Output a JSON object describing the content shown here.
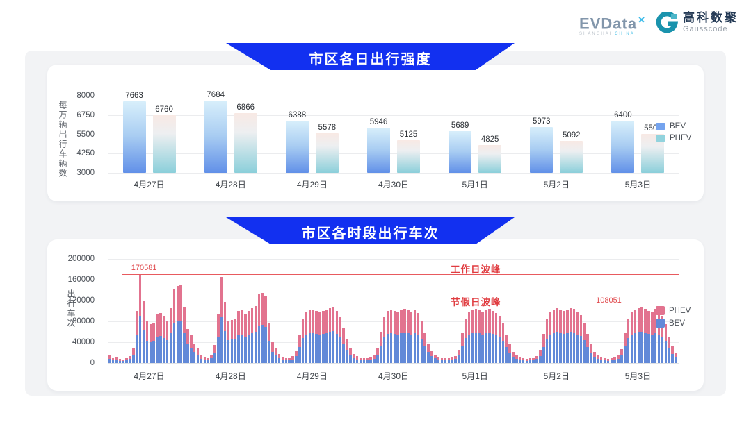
{
  "header": {
    "evdata": {
      "name": "EVData",
      "x_mark": "✕",
      "subtitle_1": "SHANGHAI",
      "subtitle_2": "CHINA"
    },
    "gausscode": {
      "cn": "高科数聚",
      "en": "Gausscode"
    }
  },
  "banners": {
    "daily": "市区各日出行强度",
    "hourly": "市区各时段出行车次"
  },
  "colors": {
    "banner_blue": "#1230f0",
    "bev_solid": "#6289d8",
    "phev_solid": "#e2738f",
    "legend_bev_daily": "#74a3ee",
    "legend_phev_daily": "#92d3dd",
    "annotation_red": "#e04a4d"
  },
  "chart_data": [
    {
      "type": "bar",
      "title": "市区各日出行强度",
      "ylabel": "每万辆出行车辆数",
      "categories": [
        "4月27日",
        "4月28日",
        "4月29日",
        "4月30日",
        "5月1日",
        "5月2日",
        "5月3日"
      ],
      "series": [
        {
          "name": "BEV",
          "values": [
            7663,
            7684,
            6388,
            5946,
            5689,
            5973,
            6400
          ]
        },
        {
          "name": "PHEV",
          "values": [
            6760,
            6866,
            5578,
            5125,
            4825,
            5092,
            5508
          ]
        }
      ],
      "ylim": [
        3000,
        8000
      ],
      "yticks": [
        "8000",
        "6750",
        "5500",
        "4250",
        "3000"
      ],
      "grid": true,
      "legend_position": "right",
      "legend_order": [
        "BEV",
        "PHEV"
      ]
    },
    {
      "type": "bar",
      "stacked": true,
      "title": "市区各时段出行车次",
      "ylabel": "出行车次",
      "categories": [
        "4月27日",
        "4月28日",
        "4月29日",
        "4月30日",
        "5月1日",
        "5月2日",
        "5月3日"
      ],
      "hours_per_day": 24,
      "ylim": [
        0,
        200000
      ],
      "yticks": [
        "200000",
        "160000",
        "120000",
        "80000",
        "40000",
        "0"
      ],
      "grid": true,
      "legend_position": "right",
      "legend_order": [
        "PHEV",
        "BEV"
      ],
      "series": [
        {
          "name": "BEV",
          "values_by_day": [
            [
              8000,
              6000,
              7000,
              4000,
              4000,
              5000,
              8000,
              15000,
              54000,
              91000,
              63000,
              43000,
              40000,
              42000,
              51000,
              52000,
              48000,
              44000,
              57000,
              77000,
              80000,
              81000,
              58000,
              36000
            ],
            [
              30000,
              21000,
              16000,
              8000,
              7000,
              5000,
              9000,
              19000,
              51000,
              88000,
              62000,
              44000,
              45000,
              46000,
              54000,
              55000,
              51000,
              54000,
              57000,
              59000,
              72000,
              73000,
              70000,
              42000
            ],
            [
              22000,
              15000,
              10000,
              7000,
              6000,
              6000,
              7000,
              13000,
              31000,
              48000,
              55000,
              57000,
              58000,
              56000,
              55000,
              56000,
              58000,
              59000,
              61000,
              56000,
              49000,
              38000,
              25000,
              16000
            ],
            [
              10000,
              7000,
              6000,
              5000,
              5000,
              6000,
              8000,
              16000,
              34000,
              49000,
              56000,
              58000,
              56000,
              55000,
              57000,
              58000,
              57000,
              55000,
              58000,
              54000,
              45000,
              32000,
              21000,
              13000
            ],
            [
              9000,
              7000,
              6000,
              5000,
              5000,
              6000,
              8000,
              15000,
              32000,
              48000,
              55000,
              57000,
              58000,
              57000,
              55000,
              57000,
              58000,
              56000,
              54000,
              50000,
              43000,
              31000,
              20000,
              12000
            ],
            [
              8000,
              6000,
              5000,
              4000,
              5000,
              6000,
              8000,
              14000,
              31000,
              47000,
              55000,
              57000,
              59000,
              58000,
              56000,
              58000,
              59000,
              58000,
              55000,
              52000,
              44000,
              31000,
              20000,
              12000
            ],
            [
              8000,
              6000,
              5000,
              4000,
              5000,
              6000,
              8000,
              15000,
              32000,
              48000,
              55000,
              58000,
              59000,
              60000,
              58000,
              56000,
              54000,
              58000,
              55000,
              50000,
              42000,
              28000,
              18000,
              11000
            ]
          ]
        },
        {
          "name": "PHEV",
          "values_by_day": [
            [
              7000,
              4000,
              5000,
              4000,
              3000,
              4000,
              6000,
              13000,
              46000,
              79581,
              56000,
              37000,
              35000,
              36000,
              44000,
              44000,
              42000,
              37000,
              48000,
              66000,
              68000,
              69000,
              50000,
              30000
            ],
            [
              25000,
              17000,
              14000,
              7000,
              5000,
              5000,
              7000,
              16000,
              44000,
              77000,
              55000,
              38000,
              38000,
              39000,
              46000,
              46000,
              44000,
              46000,
              48000,
              51000,
              62000,
              62000,
              59000,
              36000
            ],
            [
              18000,
              13000,
              8000,
              5000,
              4000,
              4000,
              6000,
              11000,
              24000,
              37000,
              43000,
              44000,
              45000,
              44000,
              43000,
              44000,
              45000,
              46000,
              47000,
              44000,
              39000,
              30000,
              20000,
              12000
            ],
            [
              8000,
              6000,
              4000,
              4000,
              4000,
              5000,
              7000,
              12000,
              26000,
              39000,
              44000,
              45000,
              44000,
              43000,
              44000,
              46000,
              45000,
              43000,
              45000,
              42000,
              35000,
              26000,
              17000,
              11000
            ],
            [
              7000,
              5000,
              4000,
              4000,
              4000,
              5000,
              6000,
              11000,
              26000,
              38000,
              44000,
              45000,
              46000,
              44000,
              44000,
              45000,
              46000,
              44000,
              42000,
              40000,
              33000,
              24000,
              16000,
              10000
            ],
            [
              7000,
              5000,
              4000,
              4000,
              4000,
              4000,
              6000,
              11000,
              25000,
              37000,
              43000,
              45000,
              46000,
              45000,
              44000,
              45000,
              47000,
              46000,
              44000,
              40000,
              34000,
              25000,
              16000,
              10000
            ],
            [
              7000,
              5000,
              4000,
              4000,
              4000,
              5000,
              7000,
              12000,
              26000,
              38000,
              43000,
              45000,
              47000,
              48051,
              46000,
              44000,
              43000,
              46000,
              44000,
              40000,
              33000,
              22000,
              14000,
              9000
            ]
          ]
        }
      ],
      "annotations": [
        {
          "type": "line",
          "y": 170581,
          "value_label": "170581",
          "label": "工作日波峰",
          "x_start_pct": 2.3,
          "value_x_pct": 4.0,
          "label_x_pct": 60
        },
        {
          "type": "line",
          "y": 108051,
          "value_label": "108051",
          "label": "节假日波峰",
          "x_start_pct": 29.0,
          "value_x_pct": 85.5,
          "label_x_pct": 60
        }
      ]
    }
  ]
}
